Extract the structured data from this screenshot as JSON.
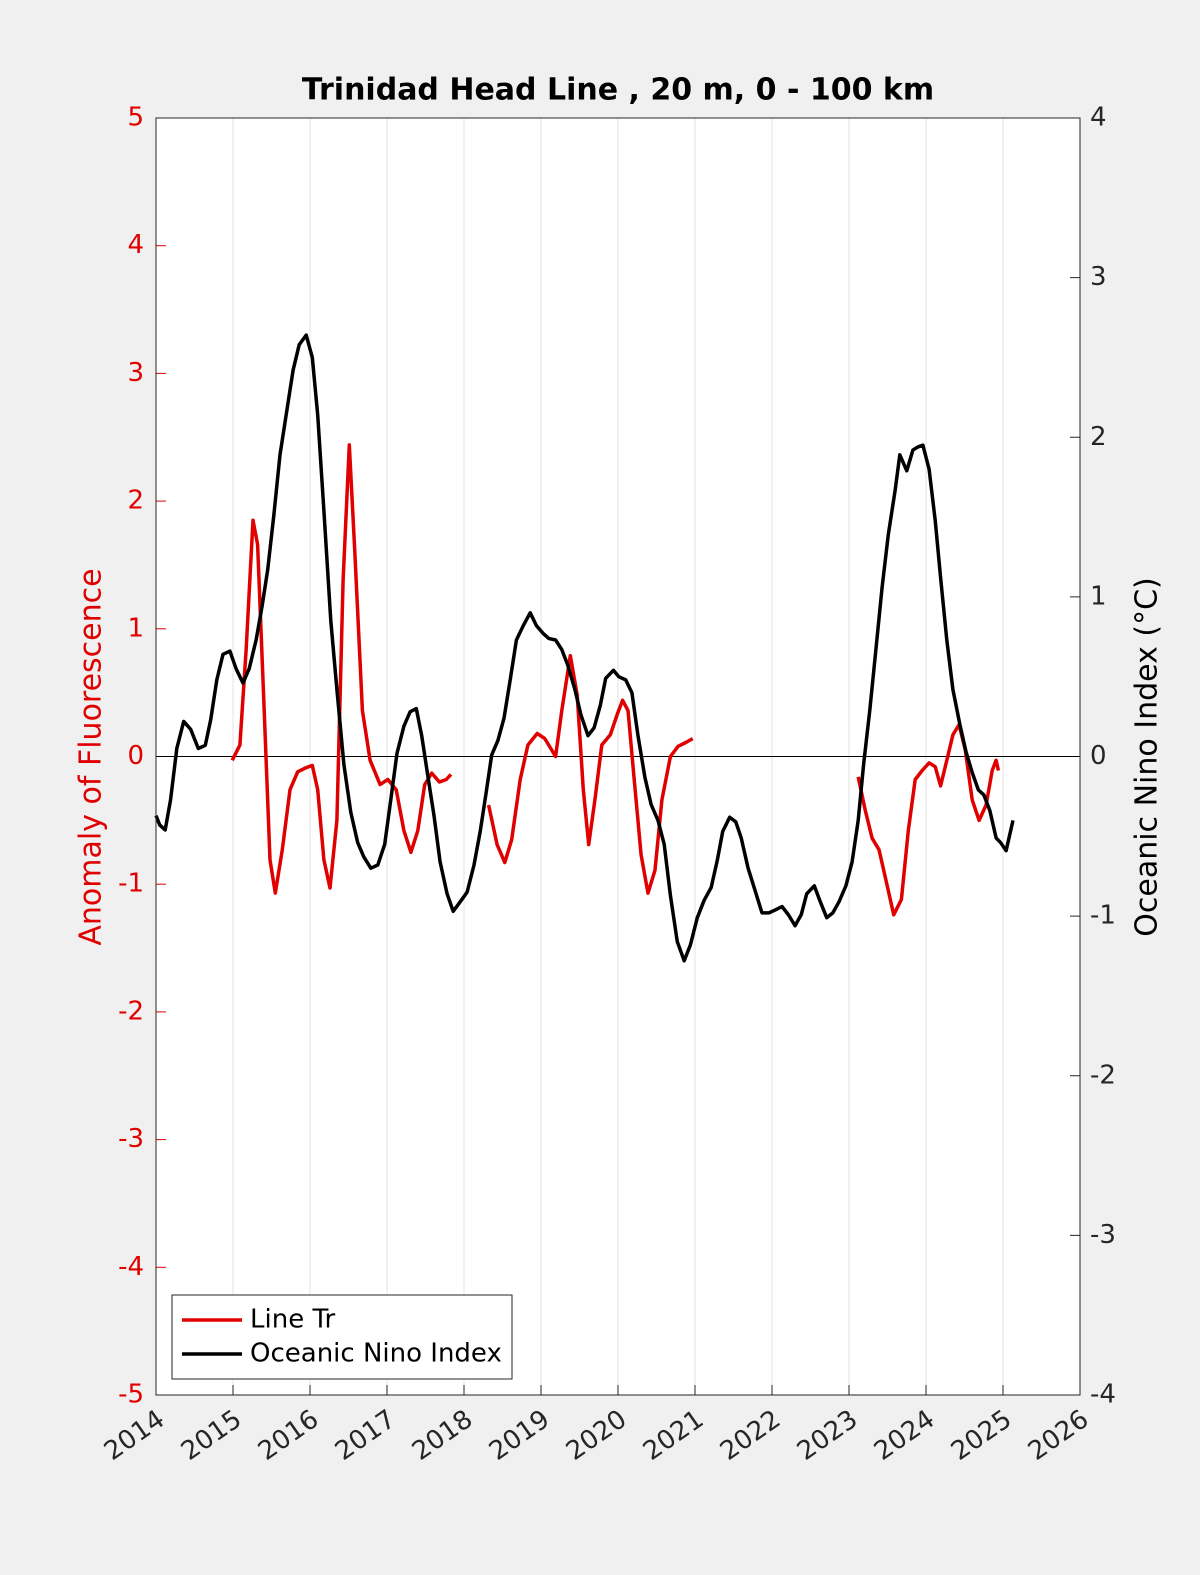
{
  "chart_data": {
    "type": "line",
    "title": "Trinidad Head Line , 20 m, 0 - 100 km",
    "ylabel": "Anomaly of Fluorescence",
    "y2label": "Oceanic Nino Index (°C)",
    "xlim": [
      2014,
      2026
    ],
    "xticks": [
      2014,
      2015,
      2016,
      2017,
      2018,
      2019,
      2020,
      2021,
      2022,
      2023,
      2024,
      2025,
      2026
    ],
    "ylim": [
      -5,
      5
    ],
    "yticks": [
      -5,
      -4,
      -3,
      -2,
      -1,
      0,
      1,
      2,
      3,
      4,
      5
    ],
    "y2lim": [
      -4,
      4
    ],
    "y2ticks": [
      -4,
      -3,
      -2,
      -1,
      0,
      1,
      2,
      3,
      4
    ],
    "grid": true,
    "legend": "southwest",
    "series": [
      {
        "name": "Line Tr",
        "color": "#e00000",
        "axis": "y",
        "x": [
          2014.99,
          2015.09,
          2015.17,
          2015.26,
          2015.32,
          2015.4,
          2015.48,
          2015.55,
          2015.64,
          2015.74,
          2015.84,
          2015.94,
          2016.03,
          2016.1,
          2016.18,
          2016.26,
          2016.35,
          2016.43,
          2016.51,
          2016.58,
          2016.68,
          2016.78,
          2016.91,
          2017.01,
          2017.12,
          2017.22,
          2017.31,
          2017.4,
          2017.49,
          2017.58,
          2017.68,
          2017.77,
          2017.83,
          2018.08,
          2018.32,
          2018.43,
          2018.53,
          2018.62,
          2018.73,
          2018.83,
          2018.95,
          2019.05,
          2019.14,
          2019.19,
          2019.27,
          2019.38,
          2019.47,
          2019.55,
          2019.62,
          2019.7,
          2019.79,
          2019.9,
          2019.99,
          2020.06,
          2020.13,
          2020.21,
          2020.3,
          2020.39,
          2020.48,
          2020.57,
          2020.68,
          2020.78,
          2020.88,
          2020.97,
          2022.0,
          2023.12,
          2023.21,
          2023.3,
          2023.39,
          2023.48,
          2023.58,
          2023.68,
          2023.77,
          2023.86,
          2023.95,
          2024.04,
          2024.12,
          2024.19,
          2024.27,
          2024.35,
          2024.43,
          2024.51,
          2024.6,
          2024.69,
          2024.78,
          2024.86,
          2024.91,
          2024.94
        ],
        "values": [
          -0.03,
          0.09,
          0.83,
          1.85,
          1.66,
          0.44,
          -0.81,
          -1.07,
          -0.73,
          -0.26,
          -0.12,
          -0.09,
          -0.07,
          -0.26,
          -0.81,
          -1.03,
          -0.5,
          1.38,
          2.44,
          1.62,
          0.36,
          -0.03,
          -0.22,
          -0.18,
          -0.26,
          -0.58,
          -0.75,
          -0.58,
          -0.22,
          -0.13,
          -0.2,
          -0.18,
          -0.14,
          null,
          -0.38,
          -0.69,
          -0.83,
          -0.65,
          -0.18,
          0.09,
          0.18,
          0.14,
          0.05,
          0.0,
          0.36,
          0.79,
          0.48,
          -0.26,
          -0.69,
          -0.34,
          0.09,
          0.17,
          0.33,
          0.44,
          0.36,
          -0.18,
          -0.77,
          -1.07,
          -0.89,
          -0.34,
          0.0,
          0.08,
          0.11,
          0.14,
          null,
          -0.16,
          -0.42,
          -0.64,
          -0.73,
          -0.97,
          -1.24,
          -1.12,
          -0.58,
          -0.18,
          -0.11,
          -0.05,
          -0.08,
          -0.23,
          -0.03,
          0.17,
          0.25,
          0.05,
          -0.34,
          -0.5,
          -0.38,
          -0.11,
          -0.03,
          -0.11
        ]
      },
      {
        "name": "Oceanic Nino Index",
        "color": "#000000",
        "axis": "y2",
        "x": [
          2014.0,
          2014.05,
          2014.12,
          2014.19,
          2014.27,
          2014.36,
          2014.45,
          2014.55,
          2014.64,
          2014.71,
          2014.79,
          2014.87,
          2014.96,
          2015.04,
          2015.13,
          2015.21,
          2015.3,
          2015.38,
          2015.45,
          2015.53,
          2015.61,
          2015.7,
          2015.78,
          2015.86,
          2015.95,
          2016.03,
          2016.1,
          2016.18,
          2016.27,
          2016.35,
          2016.44,
          2016.53,
          2016.62,
          2016.7,
          2016.79,
          2016.88,
          2016.97,
          2017.05,
          2017.13,
          2017.22,
          2017.3,
          2017.38,
          2017.45,
          2017.53,
          2017.61,
          2017.69,
          2017.78,
          2017.86,
          2017.95,
          2018.04,
          2018.13,
          2018.21,
          2018.29,
          2018.36,
          2018.44,
          2018.52,
          2018.6,
          2018.68,
          2018.77,
          2018.86,
          2018.94,
          2019.03,
          2019.1,
          2019.19,
          2019.27,
          2019.35,
          2019.44,
          2019.52,
          2019.61,
          2019.69,
          2019.77,
          2019.84,
          2019.94,
          2020.01,
          2020.1,
          2020.18,
          2020.26,
          2020.35,
          2020.43,
          2020.52,
          2020.6,
          2020.68,
          2020.77,
          2020.86,
          2020.94,
          2021.03,
          2021.12,
          2021.21,
          2021.29,
          2021.36,
          2021.45,
          2021.53,
          2021.6,
          2021.69,
          2021.78,
          2021.87,
          2021.96,
          2022.05,
          2022.13,
          2022.21,
          2022.3,
          2022.38,
          2022.45,
          2022.55,
          2022.62,
          2022.71,
          2022.79,
          2022.87,
          2022.96,
          2023.04,
          2023.12,
          2023.19,
          2023.27,
          2023.35,
          2023.43,
          2023.51,
          2023.6,
          2023.66,
          2023.75,
          2023.83,
          2023.9,
          2023.96,
          2024.04,
          2024.12,
          2024.19,
          2024.27,
          2024.35,
          2024.44,
          2024.52,
          2024.6,
          2024.68,
          2024.75,
          2024.83,
          2024.91,
          2024.97,
          2025.04,
          2025.13
        ],
        "values": [
          -0.37,
          -0.43,
          -0.46,
          -0.27,
          0.05,
          0.22,
          0.17,
          0.05,
          0.07,
          0.23,
          0.48,
          0.64,
          0.66,
          0.55,
          0.46,
          0.55,
          0.73,
          0.95,
          1.17,
          1.51,
          1.89,
          2.17,
          2.42,
          2.58,
          2.64,
          2.5,
          2.14,
          1.54,
          0.85,
          0.42,
          -0.05,
          -0.35,
          -0.54,
          -0.63,
          -0.7,
          -0.68,
          -0.55,
          -0.27,
          0.02,
          0.19,
          0.28,
          0.3,
          0.13,
          -0.12,
          -0.37,
          -0.66,
          -0.86,
          -0.97,
          -0.91,
          -0.85,
          -0.68,
          -0.47,
          -0.22,
          0.01,
          0.1,
          0.24,
          0.48,
          0.73,
          0.82,
          0.9,
          0.82,
          0.77,
          0.74,
          0.73,
          0.67,
          0.57,
          0.42,
          0.26,
          0.13,
          0.18,
          0.32,
          0.49,
          0.54,
          0.5,
          0.48,
          0.4,
          0.13,
          -0.13,
          -0.3,
          -0.4,
          -0.55,
          -0.87,
          -1.16,
          -1.28,
          -1.18,
          -1.01,
          -0.9,
          -0.82,
          -0.65,
          -0.47,
          -0.38,
          -0.41,
          -0.51,
          -0.7,
          -0.84,
          -0.98,
          -0.98,
          -0.96,
          -0.94,
          -0.99,
          -1.06,
          -0.99,
          -0.86,
          -0.81,
          -0.9,
          -1.01,
          -0.98,
          -0.91,
          -0.81,
          -0.66,
          -0.4,
          -0.05,
          0.29,
          0.67,
          1.06,
          1.39,
          1.67,
          1.89,
          1.79,
          1.92,
          1.94,
          1.95,
          1.8,
          1.48,
          1.12,
          0.73,
          0.42,
          0.2,
          0.03,
          -0.1,
          -0.21,
          -0.24,
          -0.34,
          -0.51,
          -0.54,
          -0.59,
          -0.4
        ]
      }
    ]
  }
}
